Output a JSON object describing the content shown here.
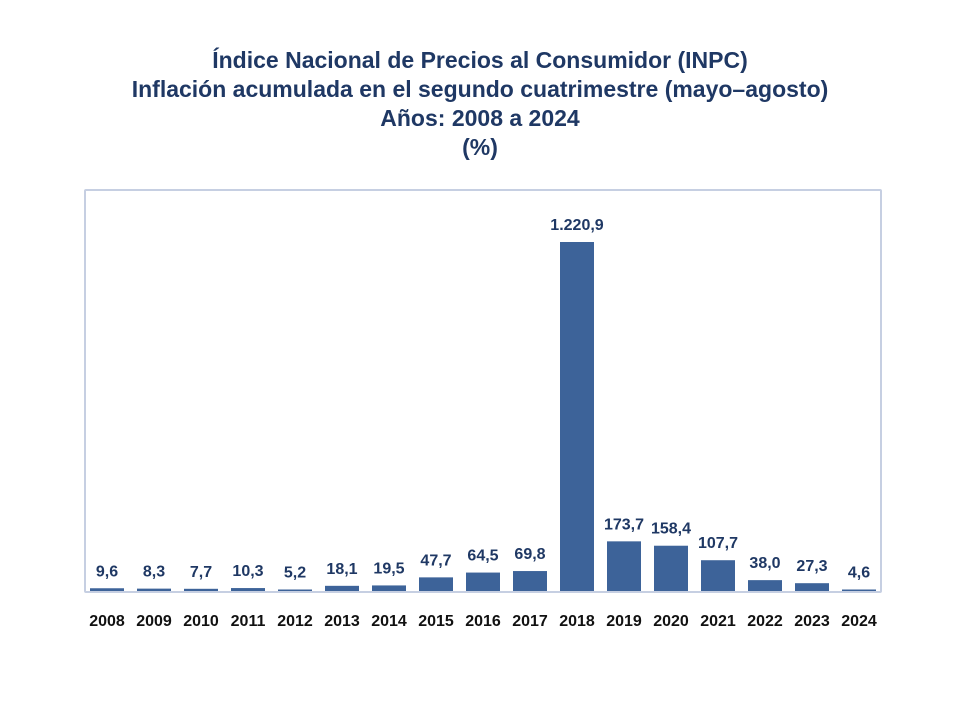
{
  "header": {
    "title_line1": "Índice Nacional de Precios al Consumidor (INPC)",
    "title_line2": "Inflación acumulada en el segundo cuatrimestre (mayo–agosto)",
    "title_line3": "Años: 2008 a 2024",
    "title_line4": "(%)"
  },
  "chart_data": {
    "type": "bar",
    "title": "Índice Nacional de Precios al Consumidor (INPC) Inflación acumulada en el segundo cuatrimestre (mayo–agosto) Años: 2008 a 2024 (%)",
    "categories": [
      "2008",
      "2009",
      "2010",
      "2011",
      "2012",
      "2013",
      "2014",
      "2015",
      "2016",
      "2017",
      "2018",
      "2019",
      "2020",
      "2021",
      "2022",
      "2023",
      "2024"
    ],
    "values": [
      9.6,
      8.3,
      7.7,
      10.3,
      5.2,
      18.1,
      19.5,
      47.7,
      64.5,
      69.8,
      1220.9,
      173.7,
      158.4,
      107.7,
      38.0,
      27.3,
      4.6
    ],
    "value_labels": [
      "9,6",
      "8,3",
      "7,7",
      "10,3",
      "5,2",
      "18,1",
      "19,5",
      "47,7",
      "64,5",
      "69,8",
      "1.220,9",
      "173,7",
      "158,4",
      "107,7",
      "38,0",
      "27,3",
      "4,6"
    ],
    "ylim": [
      0,
      1220.9
    ],
    "grid": false,
    "legend": "none",
    "bar_color": "#3d6399"
  }
}
